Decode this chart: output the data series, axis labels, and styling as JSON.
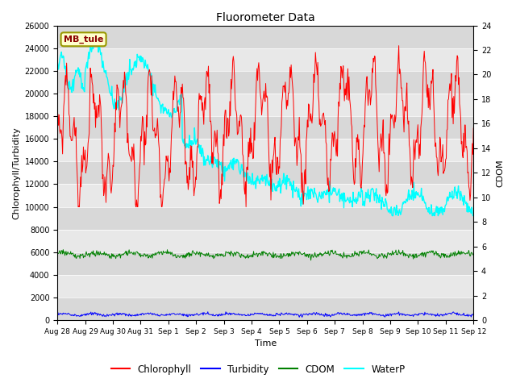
{
  "title": "Fluorometer Data",
  "xlabel": "Time",
  "ylabel_left": "Chlorophyll/Turbidity",
  "ylabel_right": "CDOM",
  "ylim_left": [
    0,
    26000
  ],
  "ylim_right": [
    0,
    24
  ],
  "annotation_text": "MB_tule",
  "fig_bg_color": "#ffffff",
  "plot_bg_color": "#e8e8e8",
  "band_colors": [
    "#d8d8d8",
    "#e8e8e8"
  ],
  "colors": {
    "Chlorophyll": "red",
    "Turbidity": "blue",
    "CDOM": "green",
    "WaterP": "cyan"
  },
  "x_tick_labels": [
    "Aug 28",
    "Aug 29",
    "Aug 30",
    "Aug 31",
    "Sep 1",
    "Sep 2",
    "Sep 3",
    "Sep 4",
    "Sep 5",
    "Sep 6",
    "Sep 7",
    "Sep 8",
    "Sep 9",
    "Sep 10",
    "Sep 11",
    "Sep 12"
  ],
  "y_ticks_left": [
    0,
    2000,
    4000,
    6000,
    8000,
    10000,
    12000,
    14000,
    16000,
    18000,
    20000,
    22000,
    24000,
    26000
  ],
  "y_ticks_right": [
    0,
    2,
    4,
    6,
    8,
    10,
    12,
    14,
    16,
    18,
    20,
    22,
    24
  ]
}
